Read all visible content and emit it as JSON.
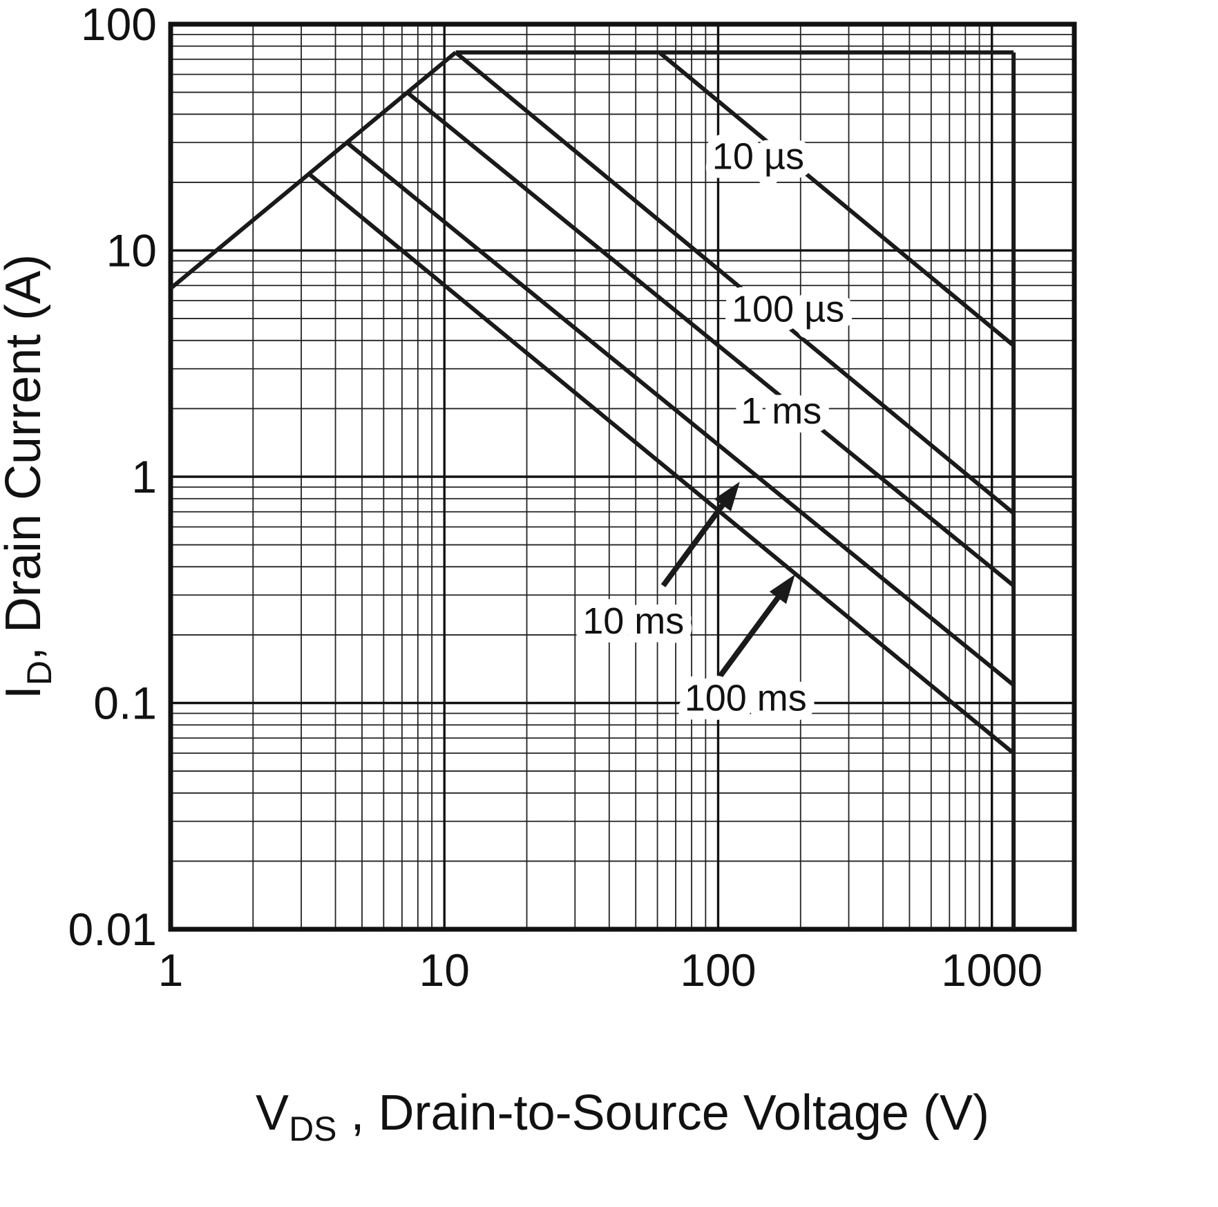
{
  "chart_data": {
    "type": "line",
    "title": "",
    "xlabel": {
      "pre": "V",
      "sub": "DS",
      "post": " , Drain-to-Source Voltage (V)"
    },
    "ylabel": {
      "pre": "I",
      "sub": "D",
      "post": ", Drain Current (A)"
    },
    "x_scale": "log",
    "y_scale": "log",
    "xlim": [
      1,
      2000
    ],
    "ylim": [
      0.01,
      100
    ],
    "x_ticks": [
      {
        "v": 1,
        "label": "1"
      },
      {
        "v": 10,
        "label": "10"
      },
      {
        "v": 100,
        "label": "100"
      },
      {
        "v": 1000,
        "label": "1000"
      }
    ],
    "y_ticks": [
      {
        "v": 0.01,
        "label": "0.01"
      },
      {
        "v": 0.1,
        "label": "0.1"
      },
      {
        "v": 1,
        "label": "1"
      },
      {
        "v": 10,
        "label": "10"
      },
      {
        "v": 100,
        "label": "100"
      }
    ],
    "x_major_gridlines": [
      10,
      100,
      1000
    ],
    "y_major_gridlines": [
      0.1,
      1,
      10
    ],
    "grid": "log-minor-on",
    "legend": "none",
    "series": [
      {
        "name": "rds-on-limit",
        "points": [
          [
            1,
            6.8
          ],
          [
            11,
            75
          ]
        ]
      },
      {
        "name": "pulsed-current-limit",
        "points": [
          [
            11,
            75
          ],
          [
            1200,
            75
          ]
        ]
      },
      {
        "name": "voltage-limit",
        "points": [
          [
            1200,
            75
          ],
          [
            1200,
            0.01
          ]
        ]
      },
      {
        "name": "10us",
        "points": [
          [
            61,
            75
          ],
          [
            1200,
            3.8
          ]
        ]
      },
      {
        "name": "100us",
        "points": [
          [
            11,
            75
          ],
          [
            1200,
            0.69
          ]
        ]
      },
      {
        "name": "1ms",
        "points": [
          [
            7.3,
            50
          ],
          [
            1200,
            0.33
          ]
        ]
      },
      {
        "name": "10ms",
        "points": [
          [
            4.4,
            30
          ],
          [
            1200,
            0.12
          ]
        ]
      },
      {
        "name": "100ms",
        "points": [
          [
            3.2,
            21.8
          ],
          [
            1200,
            0.06
          ]
        ]
      }
    ],
    "annotations": [
      {
        "text": "10 µs",
        "x": 140,
        "y": 26
      },
      {
        "text": "100 µs",
        "x": 180,
        "y": 5.5
      },
      {
        "text": "1 ms",
        "x": 170,
        "y": 1.95
      },
      {
        "text": "10 ms",
        "x": 49,
        "y": 0.23,
        "arrow": {
          "x1": 63,
          "y1": 0.33,
          "x2": 120,
          "y2": 0.95
        }
      },
      {
        "text": "100 ms",
        "x": 126,
        "y": 0.105,
        "arrow": {
          "x1": 101,
          "y1": 0.13,
          "x2": 191,
          "y2": 0.37
        }
      }
    ],
    "colors": {
      "line": "#1a1a1a",
      "grid_minor": "#222222",
      "grid_major": "#111111",
      "frame": "#111111",
      "background": "#ffffff",
      "text": "#111111"
    }
  }
}
